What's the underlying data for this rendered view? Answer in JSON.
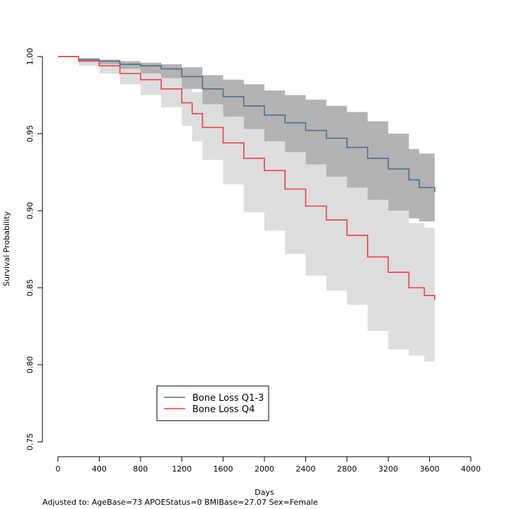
{
  "chart_data": {
    "type": "line",
    "xlabel": "Days",
    "ylabel": "Survival Probability",
    "xlim": [
      0,
      4000
    ],
    "ylim": [
      0.75,
      1.0
    ],
    "x_ticks": [
      0,
      400,
      800,
      1200,
      1600,
      2000,
      2400,
      2800,
      3200,
      3600,
      4000
    ],
    "y_ticks": [
      0.75,
      0.8,
      0.85,
      0.9,
      0.95,
      1.0
    ],
    "y_tick_labels": [
      "0.75",
      "0.80",
      "0.85",
      "0.90",
      "0.95",
      "1.00"
    ],
    "grid": false,
    "legend_position": "bottom-left",
    "series": [
      {
        "name": "Bone Loss Q1-3",
        "color": "#4a6f8c",
        "band_color": "#b3b3b3",
        "x": [
          0,
          200,
          400,
          600,
          800,
          1000,
          1200,
          1400,
          1600,
          1800,
          2000,
          2200,
          2400,
          2600,
          2800,
          3000,
          3200,
          3400,
          3500,
          3650
        ],
        "y": [
          1.0,
          0.998,
          0.997,
          0.995,
          0.994,
          0.992,
          0.987,
          0.979,
          0.974,
          0.968,
          0.962,
          0.957,
          0.952,
          0.947,
          0.941,
          0.934,
          0.927,
          0.92,
          0.915,
          0.912
        ],
        "lower": [
          1.0,
          0.997,
          0.995,
          0.992,
          0.989,
          0.986,
          0.979,
          0.969,
          0.961,
          0.953,
          0.945,
          0.938,
          0.93,
          0.922,
          0.915,
          0.907,
          0.9,
          0.895,
          0.893,
          0.891
        ],
        "upper": [
          1.0,
          0.999,
          0.998,
          0.997,
          0.996,
          0.995,
          0.993,
          0.988,
          0.985,
          0.982,
          0.978,
          0.975,
          0.972,
          0.968,
          0.964,
          0.958,
          0.95,
          0.94,
          0.937,
          0.936
        ]
      },
      {
        "name": "Bone Loss Q4",
        "color": "#f04040",
        "band_color": "#dedede",
        "x": [
          0,
          200,
          400,
          600,
          800,
          1000,
          1200,
          1300,
          1400,
          1600,
          1800,
          2000,
          2200,
          2400,
          2600,
          2800,
          3000,
          3200,
          3400,
          3550,
          3650
        ],
        "y": [
          1.0,
          0.997,
          0.994,
          0.989,
          0.985,
          0.979,
          0.97,
          0.963,
          0.954,
          0.944,
          0.934,
          0.926,
          0.914,
          0.903,
          0.894,
          0.884,
          0.87,
          0.86,
          0.85,
          0.845,
          0.842
        ],
        "lower": [
          1.0,
          0.994,
          0.989,
          0.982,
          0.975,
          0.967,
          0.955,
          0.945,
          0.933,
          0.917,
          0.899,
          0.887,
          0.872,
          0.858,
          0.848,
          0.839,
          0.822,
          0.81,
          0.806,
          0.802,
          0.8
        ],
        "upper": [
          1.0,
          0.999,
          0.998,
          0.995,
          0.992,
          0.989,
          0.983,
          0.977,
          0.969,
          0.963,
          0.957,
          0.952,
          0.945,
          0.938,
          0.929,
          0.917,
          0.907,
          0.9,
          0.892,
          0.889,
          0.888
        ]
      }
    ],
    "annotation": "Adjusted to: AgeBase=73 APOEStatus=0 BMIBase=27.07 Sex=Female"
  }
}
